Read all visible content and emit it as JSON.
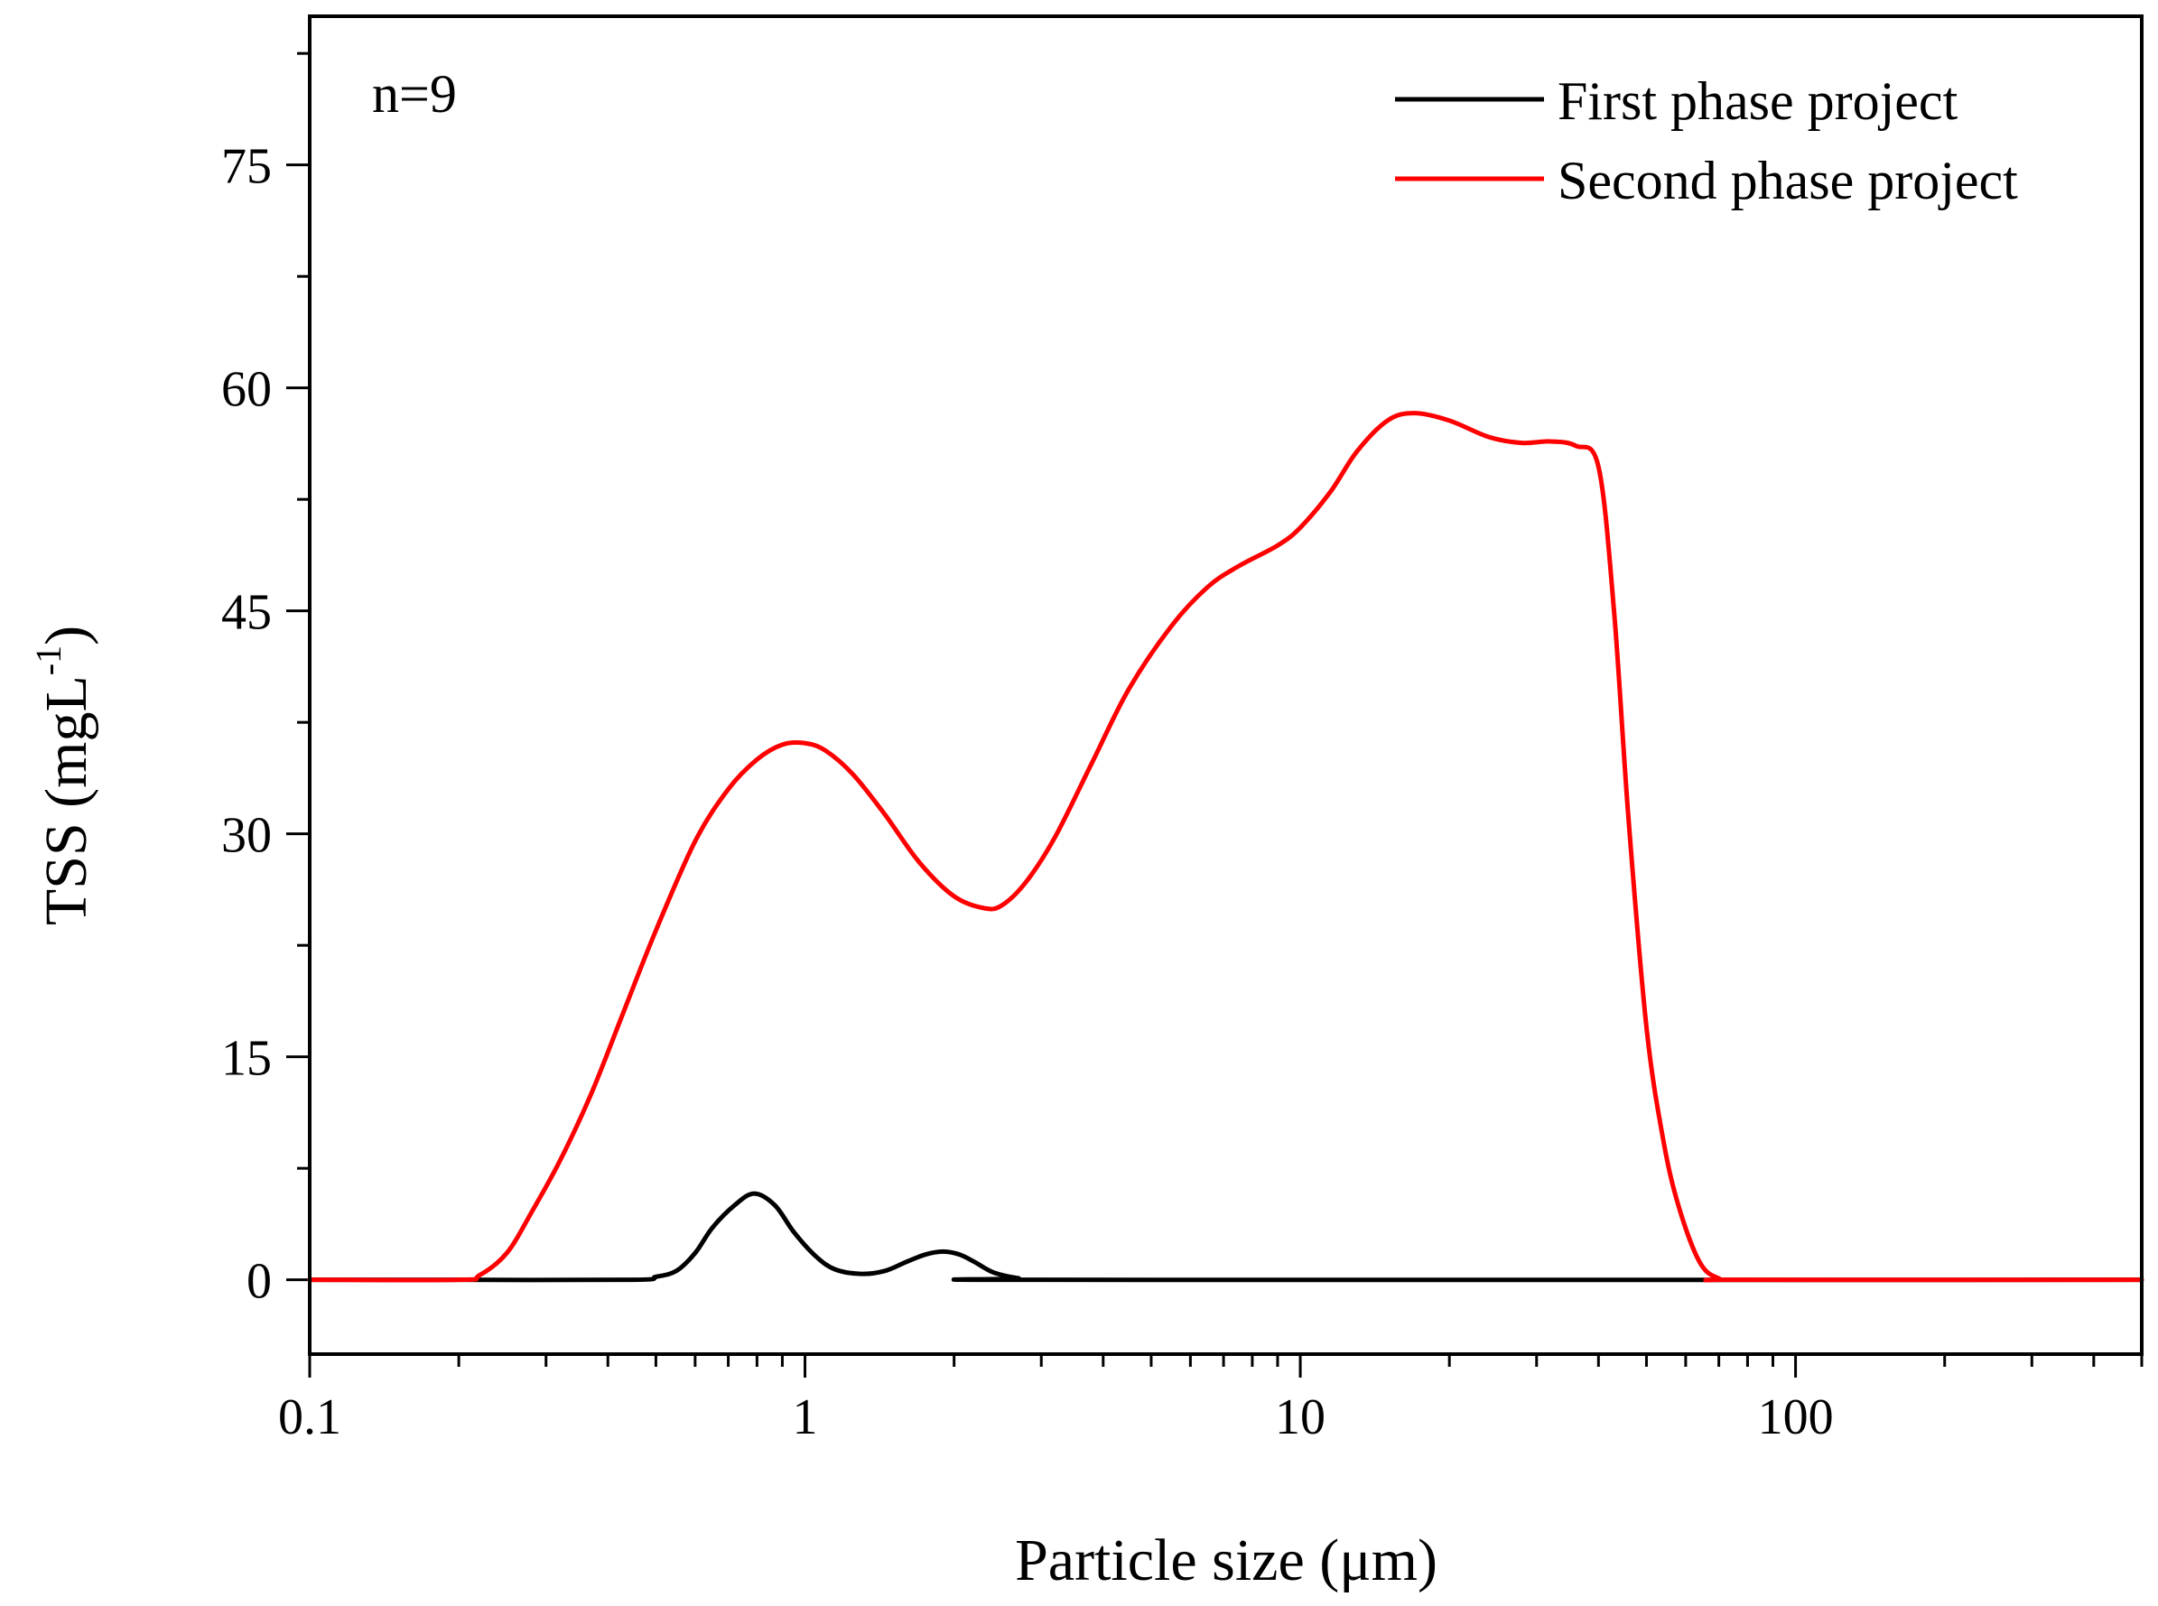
{
  "chart_data": {
    "type": "line",
    "title": "",
    "annotation": "n=9",
    "xlabel": "Particle size (μm)",
    "ylabel": {
      "main": "TSS (mgL",
      "sup": "-1",
      "close": ")"
    },
    "xscale": "log",
    "xlim": [
      0.1,
      500
    ],
    "ylim": [
      -5,
      85
    ],
    "x_ticks": [
      {
        "value": 0.1,
        "label": "0.1"
      },
      {
        "value": 1,
        "label": "1"
      },
      {
        "value": 10,
        "label": "10"
      },
      {
        "value": 100,
        "label": "100"
      }
    ],
    "y_ticks": [
      {
        "value": 0,
        "label": "0"
      },
      {
        "value": 15,
        "label": "15"
      },
      {
        "value": 30,
        "label": "30"
      },
      {
        "value": 45,
        "label": "45"
      },
      {
        "value": 60,
        "label": "60"
      },
      {
        "value": 75,
        "label": "75"
      }
    ],
    "legend_position": "top-right",
    "series": [
      {
        "name": "First phase project",
        "color": "#000000",
        "x": [
          0.1,
          0.2,
          0.45,
          0.5,
          0.55,
          0.6,
          0.65,
          0.72,
          0.79,
          0.87,
          0.95,
          1.05,
          1.15,
          1.3,
          1.45,
          1.6,
          1.75,
          1.9,
          2.05,
          2.2,
          2.4,
          2.7,
          3.0,
          500
        ],
        "y": [
          0,
          0,
          0,
          0.2,
          0.6,
          1.8,
          3.5,
          5.0,
          5.8,
          5.0,
          3.2,
          1.6,
          0.7,
          0.4,
          0.6,
          1.2,
          1.7,
          1.9,
          1.7,
          1.2,
          0.5,
          0.1,
          0,
          0
        ]
      },
      {
        "name": "Second phase project",
        "color": "#ff0000",
        "x": [
          0.1,
          0.2,
          0.22,
          0.25,
          0.28,
          0.32,
          0.37,
          0.43,
          0.5,
          0.6,
          0.7,
          0.8,
          0.9,
          1.0,
          1.1,
          1.25,
          1.45,
          1.7,
          2.0,
          2.3,
          2.5,
          2.8,
          3.2,
          3.8,
          4.5,
          5.5,
          6.5,
          7.5,
          9.0,
          10.0,
          11.5,
          13.0,
          15.0,
          17.0,
          20.0,
          24.0,
          28.0,
          32.0,
          36.0,
          40.0,
          43.0,
          46.0,
          50.0,
          54.0,
          58.0,
          64.0,
          70.0,
          78.0,
          500
        ],
        "y": [
          0,
          0,
          0.3,
          1.8,
          4.5,
          8.0,
          12.5,
          18.0,
          23.5,
          29.5,
          33.0,
          35.0,
          36.0,
          36.1,
          35.6,
          34.0,
          31.3,
          28.1,
          25.8,
          25.0,
          25.2,
          26.8,
          29.8,
          34.8,
          39.7,
          44.0,
          46.6,
          48.0,
          49.4,
          50.6,
          53.0,
          55.7,
          57.8,
          58.3,
          57.8,
          56.7,
          56.3,
          56.4,
          56.1,
          54.7,
          45.0,
          31.0,
          17.0,
          9.5,
          5.0,
          1.2,
          0.1,
          0,
          0
        ]
      }
    ]
  }
}
